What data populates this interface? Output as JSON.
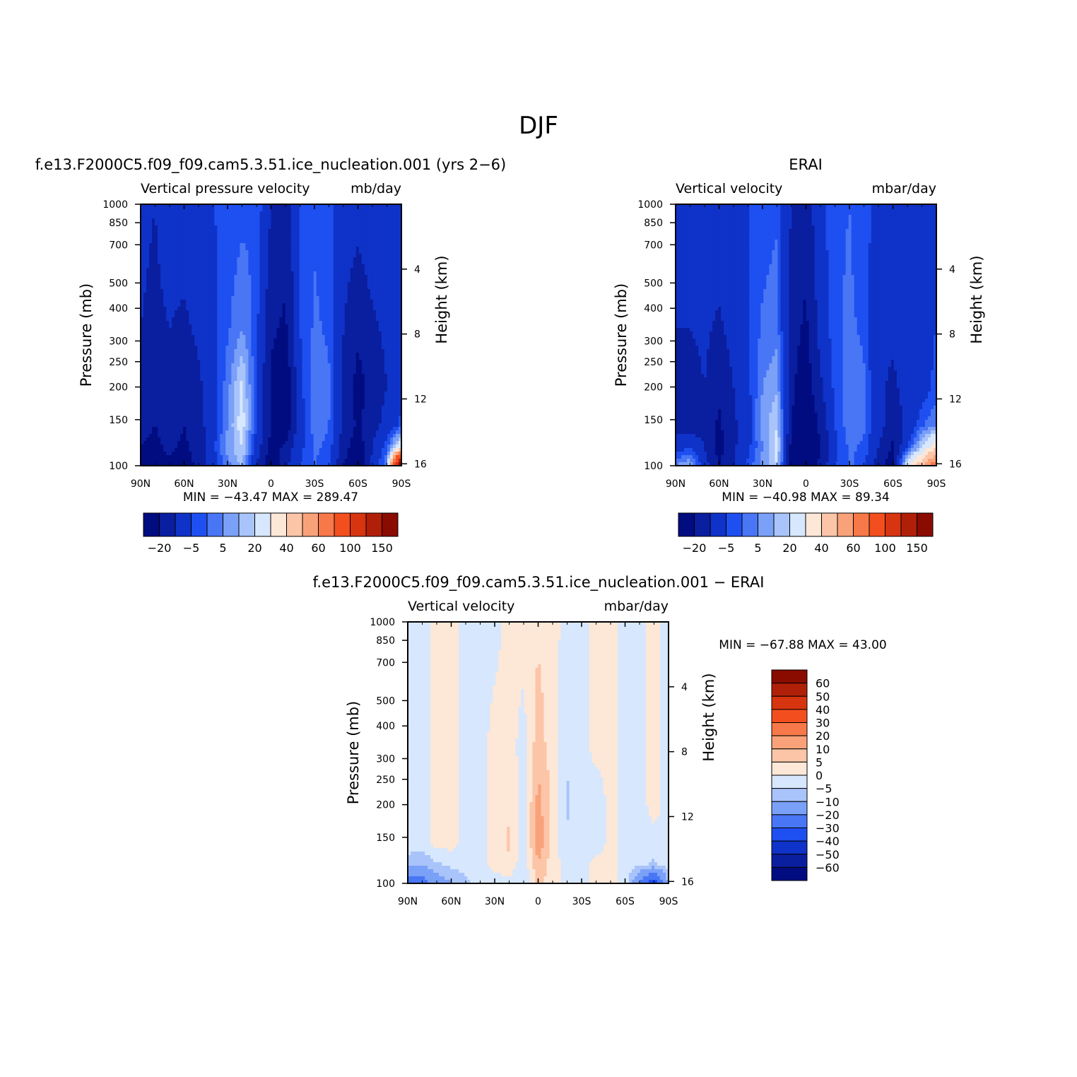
{
  "figure": {
    "title": "DJF"
  },
  "colors": {
    "palette": [
      "#000c80",
      "#0a1ea0",
      "#0f33c8",
      "#1e4ff0",
      "#4876f5",
      "#7aa0f8",
      "#a9c4fb",
      "#d7e7fd",
      "#fde7d7",
      "#fcc5a8",
      "#f9a27a",
      "#f77848",
      "#f34f1e",
      "#d73410",
      "#b02008",
      "#8a0c00"
    ]
  },
  "chart_data": [
    {
      "type": "heatmap",
      "id": "model",
      "title": "f.e13.F2000C5.f09_f09.cam5.3.51.ice_nucleation.001 (yrs 2-6)",
      "subtitle_left": "Vertical pressure velocity",
      "subtitle_right": "mb/day",
      "xlabel": "",
      "ylabel": "Pressure (mb)",
      "y2label": "Height (km)",
      "x_ticks": [
        "90N",
        "60N",
        "30N",
        "0",
        "30S",
        "60S",
        "90S"
      ],
      "y_ticks": [
        100,
        150,
        200,
        250,
        300,
        400,
        500,
        700,
        850,
        1000
      ],
      "y2_ticks": [
        4,
        8,
        12,
        16
      ],
      "ylim": [
        1000,
        100
      ],
      "y_scale": "log",
      "stats": {
        "min_label": "MIN =",
        "min": "-43.47",
        "max_label": "MAX =",
        "max": "289.47"
      },
      "colorbar": {
        "orientation": "horizontal",
        "levels": [
          -40,
          -30,
          -20,
          -10,
          -5,
          0,
          5,
          10,
          20,
          30,
          40,
          50,
          60,
          80,
          100,
          120,
          150
        ],
        "labels": [
          "-20",
          "-5",
          "5",
          "20",
          "40",
          "60",
          "100",
          "150"
        ]
      },
      "latitudes": [
        90,
        80,
        70,
        60,
        50,
        40,
        30,
        20,
        10,
        0,
        -10,
        -20,
        -30,
        -40,
        -50,
        -60,
        -70,
        -80,
        -90
      ],
      "values": [
        [
          -18,
          -20,
          -15,
          -14,
          -12,
          -10,
          -9,
          -7,
          -5,
          -20,
          -25,
          -10,
          -6,
          -8,
          -14,
          -16,
          -12,
          -12,
          -10
        ],
        [
          -20,
          -22,
          -20,
          -22,
          -18,
          -12,
          -6,
          0,
          -8,
          -28,
          -32,
          -10,
          -4,
          -6,
          -20,
          -28,
          -22,
          -18,
          -12
        ],
        [
          -25,
          -28,
          -24,
          -26,
          -22,
          -14,
          -2,
          12,
          -10,
          -32,
          -40,
          -12,
          -2,
          -4,
          -22,
          -34,
          -26,
          -20,
          -14
        ],
        [
          -28,
          -30,
          -26,
          -30,
          -24,
          -14,
          0,
          14,
          -10,
          -30,
          -38,
          -14,
          -3,
          -5,
          -22,
          -32,
          -24,
          -16,
          -8
        ],
        [
          -30,
          -32,
          -28,
          -32,
          -26,
          -12,
          2,
          10,
          -14,
          -34,
          -28,
          -12,
          -4,
          -6,
          -26,
          -36,
          -20,
          -6,
          20
        ],
        [
          -32,
          -34,
          -32,
          -35,
          -28,
          -14,
          -2,
          6,
          -20,
          -38,
          -22,
          -10,
          -5,
          -8,
          -30,
          -38,
          -18,
          0,
          150
        ]
      ]
    },
    {
      "type": "heatmap",
      "id": "obs",
      "title": "ERAI",
      "subtitle_left": "Vertical velocity",
      "subtitle_right": "mbar/day",
      "xlabel": "",
      "ylabel": "Pressure (mb)",
      "y2label": "Height (km)",
      "x_ticks": [
        "90N",
        "60N",
        "30N",
        "0",
        "30S",
        "60S",
        "90S"
      ],
      "y_ticks": [
        100,
        150,
        200,
        250,
        300,
        400,
        500,
        700,
        850,
        1000
      ],
      "y2_ticks": [
        4,
        8,
        12,
        16
      ],
      "ylim": [
        1000,
        100
      ],
      "y_scale": "log",
      "stats": {
        "min_label": "MIN =",
        "min": "-40.98",
        "max_label": "MAX =",
        "max": "89.34"
      },
      "colorbar": {
        "orientation": "horizontal",
        "levels": [
          -40,
          -30,
          -20,
          -10,
          -5,
          0,
          5,
          10,
          20,
          30,
          40,
          50,
          60,
          80,
          100,
          120,
          150
        ],
        "labels": [
          "-20",
          "-5",
          "5",
          "20",
          "40",
          "60",
          "100",
          "150"
        ]
      },
      "latitudes": [
        90,
        80,
        70,
        60,
        50,
        40,
        30,
        20,
        10,
        0,
        -10,
        -20,
        -30,
        -40,
        -50,
        -60,
        -70,
        -80,
        -90
      ],
      "values": [
        [
          -18,
          -18,
          -14,
          -12,
          -10,
          -10,
          -8,
          -6,
          -20,
          -26,
          -12,
          -6,
          -5,
          -8,
          -12,
          -12,
          -10,
          -10,
          -10
        ],
        [
          -20,
          -20,
          -18,
          -22,
          -16,
          -10,
          -4,
          -2,
          -26,
          -32,
          -16,
          -6,
          -4,
          -6,
          -18,
          -18,
          -14,
          -12,
          -10
        ],
        [
          -22,
          -24,
          -20,
          -28,
          -20,
          -12,
          0,
          4,
          -28,
          -36,
          -22,
          -8,
          -2,
          -4,
          -18,
          -22,
          -16,
          -14,
          -8
        ],
        [
          -24,
          -26,
          -24,
          -32,
          -22,
          -14,
          2,
          10,
          -30,
          -40,
          -28,
          -10,
          -2,
          -4,
          -16,
          -26,
          -18,
          -6,
          0
        ],
        [
          -14,
          -10,
          -20,
          -34,
          -22,
          -12,
          0,
          12,
          -34,
          -40,
          -30,
          -12,
          -4,
          -6,
          -20,
          -32,
          -10,
          10,
          30
        ],
        [
          0,
          5,
          -15,
          -30,
          -20,
          -8,
          2,
          10,
          -36,
          -38,
          -28,
          -10,
          -4,
          -8,
          -26,
          -36,
          20,
          40,
          60
        ]
      ]
    },
    {
      "type": "heatmap",
      "id": "diff",
      "title": "f.e13.F2000C5.f09_f09.cam5.3.51.ice_nucleation.001 - ERAI",
      "subtitle_left": "Vertical velocity",
      "subtitle_right": "mbar/day",
      "xlabel": "",
      "ylabel": "Pressure (mb)",
      "y2label": "Height (km)",
      "x_ticks": [
        "90N",
        "60N",
        "30N",
        "0",
        "30S",
        "60S",
        "90S"
      ],
      "y_ticks": [
        100,
        150,
        200,
        250,
        300,
        400,
        500,
        700,
        850,
        1000
      ],
      "y2_ticks": [
        4,
        8,
        12,
        16
      ],
      "ylim": [
        1000,
        100
      ],
      "y_scale": "log",
      "stats": {
        "min_label": "MIN =",
        "min": "-67.88",
        "max_label": "MAX =",
        "max": "43.00"
      },
      "colorbar": {
        "orientation": "vertical",
        "levels": [
          -70,
          -60,
          -50,
          -40,
          -30,
          -20,
          -10,
          -5,
          0,
          5,
          10,
          20,
          30,
          40,
          50,
          60,
          70
        ],
        "labels": [
          "60",
          "50",
          "40",
          "30",
          "20",
          "10",
          "5",
          "0",
          "-5",
          "-10",
          "-20",
          "-30",
          "-40",
          "-50",
          "-60"
        ]
      },
      "latitudes": [
        90,
        80,
        70,
        60,
        50,
        40,
        30,
        20,
        10,
        0,
        -10,
        -20,
        -30,
        -40,
        -50,
        -60,
        -70,
        -80,
        -90
      ],
      "values": [
        [
          -2,
          -2,
          2,
          2,
          -2,
          -2,
          -2,
          2,
          2,
          4,
          2,
          -2,
          -2,
          2,
          2,
          -2,
          -2,
          2,
          -2
        ],
        [
          -2,
          -2,
          2,
          2,
          -2,
          -2,
          2,
          2,
          -2,
          8,
          2,
          -4,
          -2,
          2,
          2,
          -2,
          -2,
          2,
          -2
        ],
        [
          -2,
          -2,
          2,
          2,
          -2,
          -2,
          2,
          4,
          -2,
          12,
          4,
          -6,
          -2,
          -4,
          2,
          -2,
          -2,
          2,
          -2
        ],
        [
          -2,
          -2,
          2,
          2,
          -2,
          -2,
          2,
          6,
          -3,
          14,
          3,
          -4,
          -2,
          -3,
          2,
          -2,
          -2,
          -2,
          -2
        ],
        [
          -8,
          -10,
          -6,
          -4,
          -3,
          -2,
          2,
          4,
          -4,
          10,
          2,
          -2,
          -2,
          2,
          2,
          -2,
          -4,
          -6,
          -2
        ],
        [
          -30,
          -25,
          -15,
          -10,
          -6,
          -4,
          -3,
          -2,
          -4,
          6,
          2,
          -2,
          -2,
          2,
          2,
          -2,
          -20,
          -40,
          -10
        ]
      ]
    }
  ]
}
